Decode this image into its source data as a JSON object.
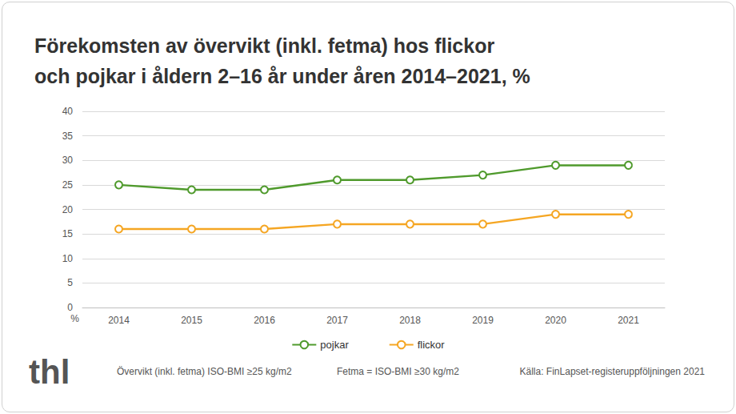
{
  "chart_data": {
    "type": "line",
    "title": "Förekomsten av övervikt (inkl. fetma) hos flickor\noch pojkar i åldern 2–16 år under åren 2014–2021, %",
    "ylabel": "%",
    "categories": [
      "2014",
      "2015",
      "2016",
      "2017",
      "2018",
      "2019",
      "2020",
      "2021"
    ],
    "series": [
      {
        "name": "pojkar",
        "color": "#4f9a2c",
        "values": [
          25,
          24,
          24,
          26,
          26,
          27,
          29,
          29
        ]
      },
      {
        "name": "flickor",
        "color": "#f5a623",
        "values": [
          16,
          16,
          16,
          17,
          17,
          17,
          19,
          19
        ]
      }
    ],
    "ylim": [
      0,
      40
    ],
    "yticks": [
      0,
      5,
      10,
      15,
      20,
      25,
      30,
      35,
      40
    ],
    "grid": true,
    "legend": "bottom",
    "marker": "circle",
    "line_style": "solid",
    "annotations": [
      "Övervikt (inkl. fetma) ISO-BMI ≥25 kg/m2",
      "Fetma = ISO-BMI ≥30 kg/m2"
    ],
    "source": "Källa: FinLapset-registeruppföljningen 2021",
    "logo": "thl"
  }
}
